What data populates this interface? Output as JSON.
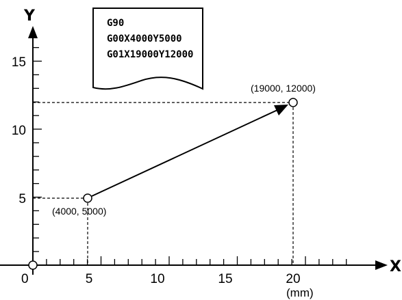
{
  "axes": {
    "x_label": "X",
    "y_label": "Y",
    "unit": "(mm)",
    "origin_label": "0",
    "x_ticks": [
      "5",
      "10",
      "15",
      "20"
    ],
    "y_ticks": [
      "5",
      "10",
      "15"
    ]
  },
  "program": {
    "lines": [
      "G90",
      "G00X4000Y5000",
      "G01X19000Y12000"
    ]
  },
  "points": {
    "start": {
      "x": 4000,
      "y": 5000,
      "label": "(4000, 5000)"
    },
    "end": {
      "x": 19000,
      "y": 12000,
      "label": "(19000, 12000)"
    }
  },
  "colors": {
    "ink": "#000000",
    "background": "#ffffff"
  }
}
